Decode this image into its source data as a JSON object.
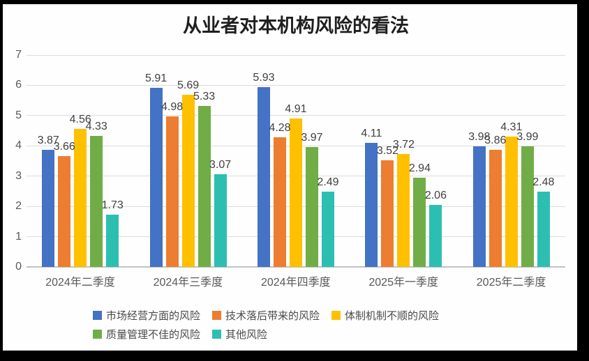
{
  "frame": {
    "border_color": "#000000",
    "background_color": "#fefefe"
  },
  "chart_data": {
    "type": "bar",
    "title": "从业者对本机构风险的看法",
    "categories": [
      "2024年二季度",
      "2024年三季度",
      "2024年四季度",
      "2025年一季度",
      "2025年二季度"
    ],
    "series": [
      {
        "name": "市场经营方面的风险",
        "color": "#4472C4",
        "values": [
          3.87,
          5.91,
          5.93,
          4.11,
          3.98
        ]
      },
      {
        "name": "技术落后带来的风险",
        "color": "#ED7D31",
        "values": [
          3.66,
          4.98,
          4.28,
          3.52,
          3.86
        ]
      },
      {
        "name": "体制机制不顺的风险",
        "color": "#FFC000",
        "values": [
          4.56,
          5.69,
          4.91,
          3.72,
          4.31
        ]
      },
      {
        "name": "质量管理不佳的风险",
        "color": "#70AD47",
        "values": [
          4.33,
          5.33,
          3.97,
          2.94,
          3.99
        ]
      },
      {
        "name": "其他风险",
        "color": "#2DBEB2",
        "values": [
          1.73,
          3.07,
          2.49,
          2.06,
          2.48
        ]
      }
    ],
    "y_axis": {
      "min": 0,
      "max": 7,
      "step": 1,
      "ticks": [
        "0",
        "1",
        "2",
        "3",
        "4",
        "5",
        "6",
        "7"
      ]
    },
    "grid": true,
    "data_labels": true,
    "data_label_decimals": 2,
    "legend_position": "bottom",
    "xlabel": "",
    "ylabel": ""
  }
}
